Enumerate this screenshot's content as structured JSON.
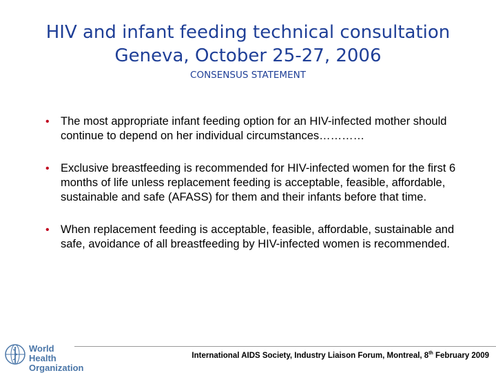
{
  "title": {
    "line1": "HIV and infant feeding technical consultation",
    "line2": "Geneva, October 25-27, 2006",
    "subtitle": "CONSENSUS STATEMENT"
  },
  "bullets": [
    {
      "text": "The most appropriate infant feeding option for an HIV-infected mother should continue to depend on her individual circumstances…………"
    },
    {
      "text": "Exclusive breastfeeding is recommended for HIV-infected women for the first 6 months of life unless replacement feeding is acceptable, feasible, affordable, sustainable and safe (AFASS) for them and their infants before that time."
    },
    {
      "text": "When replacement feeding is acceptable, feasible, affordable, sustainable and safe, avoidance of all breastfeeding by HIV-infected women is recommended."
    }
  ],
  "footer": {
    "logo_line1": "World Health",
    "logo_line2": "Organization",
    "text_main": "International AIDS Society, Industry Liaison Forum, Montreal, 8",
    "text_sup": "th",
    "text_end": " February 2009"
  },
  "colors": {
    "title": "#1f3f97",
    "bullet": "#c0001e",
    "logo": "#4a76a8"
  }
}
